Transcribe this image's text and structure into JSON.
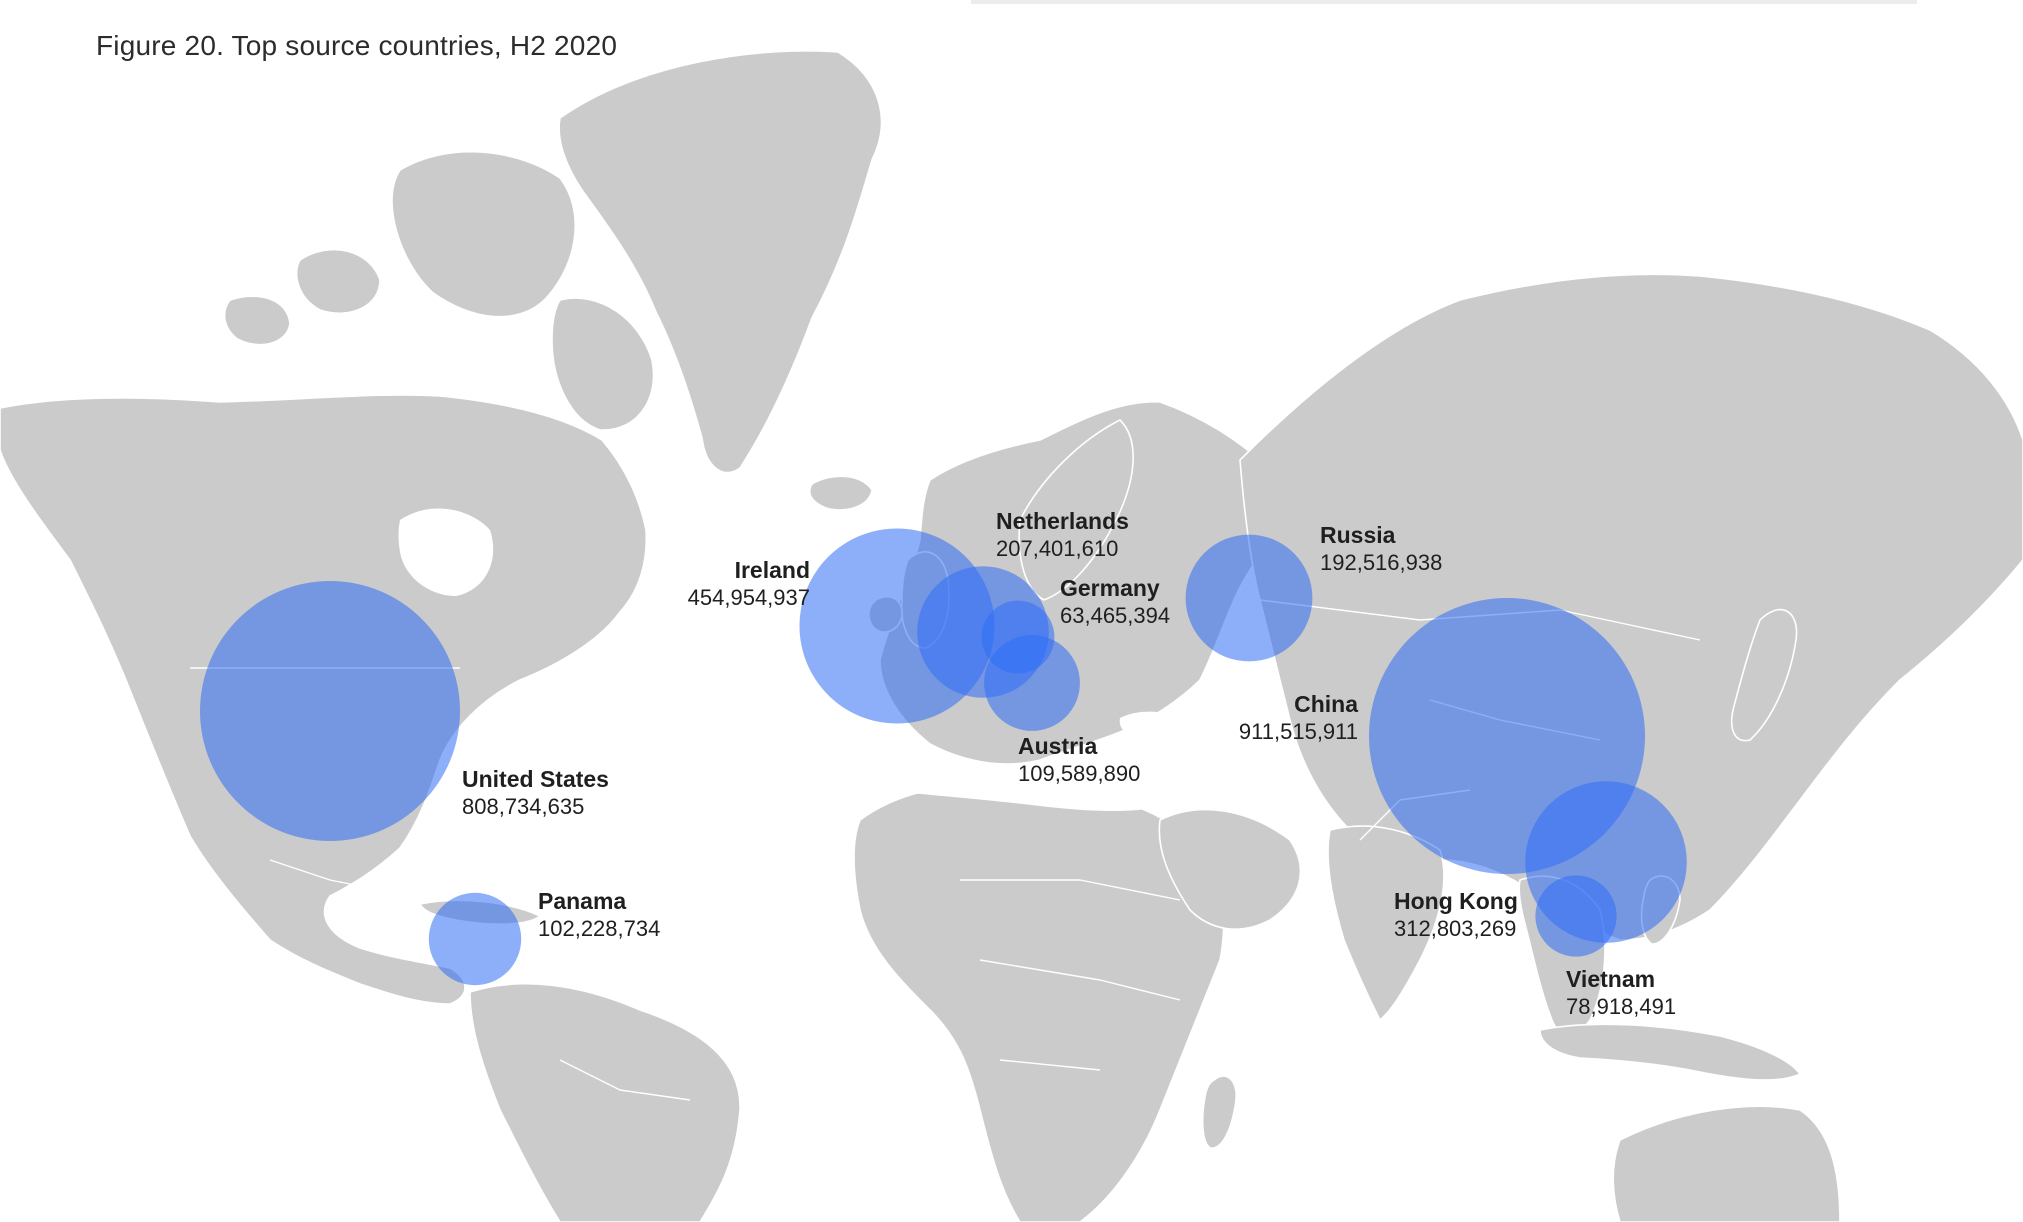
{
  "title": "Figure 20. Top source countries, H2 2020",
  "colors": {
    "land": "#cbcbcb",
    "ocean": "#ffffff",
    "bubble": "#2f6ef5",
    "border": "#ffffff"
  },
  "map": {
    "bubbles": [
      {
        "key": "united_states",
        "name": "United States",
        "value": "808,734,635",
        "amount": 808734635
      },
      {
        "key": "china",
        "name": "China",
        "value": "911,515,911",
        "amount": 911515911
      },
      {
        "key": "ireland",
        "name": "Ireland",
        "value": "454,954,937",
        "amount": 454954937
      },
      {
        "key": "hong_kong",
        "name": "Hong Kong",
        "value": "312,803,269",
        "amount": 312803269
      },
      {
        "key": "netherlands",
        "name": "Netherlands",
        "value": "207,401,610",
        "amount": 207401610
      },
      {
        "key": "russia",
        "name": "Russia",
        "value": "192,516,938",
        "amount": 192516938
      },
      {
        "key": "austria",
        "name": "Austria",
        "value": "109,589,890",
        "amount": 109589890
      },
      {
        "key": "panama",
        "name": "Panama",
        "value": "102,228,734",
        "amount": 102228734
      },
      {
        "key": "vietnam",
        "name": "Vietnam",
        "value": "78,918,491",
        "amount": 78918491
      },
      {
        "key": "germany",
        "name": "Germany",
        "value": "63,465,394",
        "amount": 63465394
      }
    ]
  }
}
